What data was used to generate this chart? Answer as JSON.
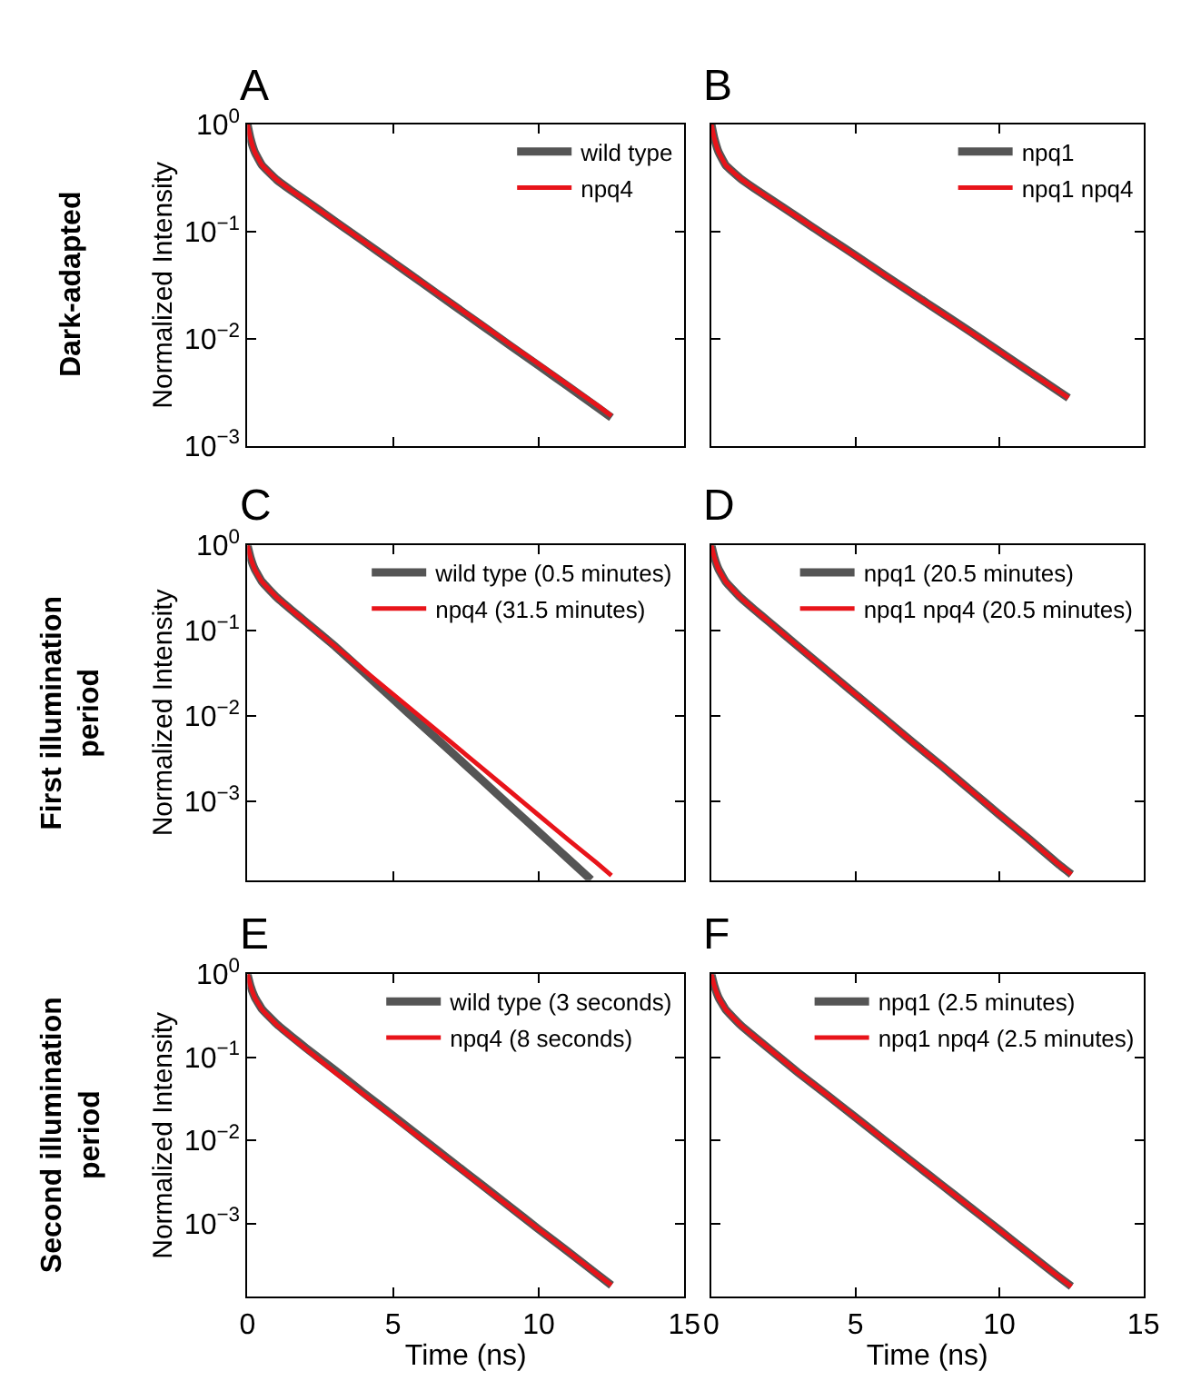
{
  "chart_data": [
    {
      "type": "line",
      "title": "A",
      "ylabel": "Normalized Intensity",
      "annotations": [
        "Dark-adapted"
      ],
      "log": "y",
      "xlim": [
        0,
        15
      ],
      "xticks": [
        0,
        5,
        10,
        15
      ],
      "ylim": [
        0.001,
        1
      ],
      "yticks": [
        {
          "value": 1,
          "label": "10$^{0}$"
        },
        {
          "value": 0.1,
          "label": "10$^{−1}$"
        },
        {
          "value": 0.01,
          "label": "10$^{−2}$"
        },
        {
          "value": 0.001,
          "label": "10$^{−3}$"
        }
      ],
      "tick_labels": "y",
      "legend": "top right",
      "line_style": "solid",
      "x": [
        0,
        0.1,
        0.25,
        0.5,
        1,
        1.5,
        2,
        3,
        4,
        5,
        6,
        7,
        8,
        9,
        10,
        11,
        12,
        12.5
      ],
      "series": [
        {
          "name": "wild type",
          "color": "#555555",
          "values": [
            1,
            0.745,
            0.553,
            0.416,
            0.305,
            0.242,
            0.195,
            0.125,
            0.0805,
            0.0517,
            0.0331,
            0.0212,
            0.0136,
            0.0087,
            0.0056,
            0.0036,
            0.0023,
            0.00183
          ]
        },
        {
          "name": "npq4",
          "color": "#e8141a",
          "values": [
            1,
            0.745,
            0.553,
            0.416,
            0.305,
            0.242,
            0.195,
            0.125,
            0.0805,
            0.0519,
            0.0334,
            0.0215,
            0.0139,
            0.0089,
            0.0058,
            0.0037,
            0.0024,
            0.0019
          ]
        }
      ]
    },
    {
      "type": "line",
      "title": "B",
      "log": "y",
      "xlim": [
        0,
        15
      ],
      "xticks": [
        0,
        5,
        10,
        15
      ],
      "ylim": [
        0.001,
        1
      ],
      "yticks": [
        {
          "value": 1,
          "label": null
        },
        {
          "value": 0.1,
          "label": null
        },
        {
          "value": 0.01,
          "label": null
        },
        {
          "value": 0.001,
          "label": null
        }
      ],
      "tick_labels": false,
      "legend": "top right",
      "line_style": "solid",
      "x": [
        0,
        0.1,
        0.25,
        0.5,
        1,
        1.5,
        2,
        3,
        4,
        5,
        6,
        7,
        8,
        9,
        10,
        11,
        12,
        12.4
      ],
      "series": [
        {
          "name": "npq1",
          "color": "#555555",
          "values": [
            1,
            0.745,
            0.553,
            0.416,
            0.314,
            0.252,
            0.205,
            0.136,
            0.09,
            0.06,
            0.0395,
            0.0262,
            0.0174,
            0.0116,
            0.0076,
            0.005,
            0.0033,
            0.0028
          ]
        },
        {
          "name": "npq1 npq4",
          "color": "#e8141a",
          "values": [
            1,
            0.745,
            0.553,
            0.416,
            0.314,
            0.252,
            0.205,
            0.136,
            0.0899,
            0.0596,
            0.0394,
            0.0261,
            0.0173,
            0.0115,
            0.0076,
            0.005,
            0.0033,
            0.0028
          ]
        }
      ]
    },
    {
      "type": "line",
      "title": "C",
      "ylabel": "Normalized Intensity",
      "annotations": [
        "First illumination\nperiod"
      ],
      "log": "y",
      "xlim": [
        0,
        15
      ],
      "xticks": [
        0,
        5,
        10,
        15
      ],
      "ylim": [
        0.00012,
        1
      ],
      "yticks": [
        {
          "value": 1,
          "label": "10$^{0}$"
        },
        {
          "value": 0.1,
          "label": "10$^{−1}$"
        },
        {
          "value": 0.01,
          "label": "10$^{−2}$"
        },
        {
          "value": 0.001,
          "label": "10$^{−3}$"
        }
      ],
      "tick_labels": "y",
      "legend": "top right",
      "line_style": "solid",
      "series": [
        {
          "name": "wild type (0.5 minutes)",
          "color": "#555555",
          "x": [
            0,
            0.1,
            0.25,
            0.5,
            1,
            1.5,
            2,
            3,
            4,
            5,
            6,
            7,
            8,
            9,
            10,
            11,
            11.8
          ],
          "values": [
            1,
            0.73,
            0.525,
            0.374,
            0.247,
            0.176,
            0.127,
            0.066,
            0.0324,
            0.0158,
            0.0077,
            0.0038,
            0.00185,
            0.0009,
            0.00044,
            0.000215,
            0.000121
          ]
        },
        {
          "name": "npq4 (31.5 minutes)",
          "color": "#e8141a",
          "x": [
            0,
            0.1,
            0.25,
            0.5,
            1,
            1.5,
            2,
            3,
            4,
            5,
            6,
            7,
            8,
            9,
            10,
            11,
            12,
            12.5
          ],
          "values": [
            1,
            0.73,
            0.525,
            0.374,
            0.247,
            0.176,
            0.127,
            0.066,
            0.0345,
            0.018,
            0.0094,
            0.0049,
            0.00255,
            0.00133,
            0.00069,
            0.00036,
            0.00019,
            0.000136
          ]
        }
      ]
    },
    {
      "type": "line",
      "title": "D",
      "log": "y",
      "xlim": [
        0,
        15
      ],
      "xticks": [
        0,
        5,
        10,
        15
      ],
      "ylim": [
        0.00012,
        1
      ],
      "yticks": [
        {
          "value": 1,
          "label": null
        },
        {
          "value": 0.1,
          "label": null
        },
        {
          "value": 0.01,
          "label": null
        },
        {
          "value": 0.001,
          "label": null
        }
      ],
      "tick_labels": false,
      "legend": "top right",
      "line_style": "solid",
      "x": [
        0,
        0.1,
        0.25,
        0.5,
        1,
        1.5,
        2,
        3,
        4,
        5,
        6,
        7,
        8,
        9,
        10,
        11,
        12,
        12.5
      ],
      "series": [
        {
          "name": "npq1 (20.5 minutes)",
          "color": "#555555",
          "values": [
            1,
            0.73,
            0.525,
            0.374,
            0.247,
            0.176,
            0.127,
            0.066,
            0.0345,
            0.018,
            0.0094,
            0.0049,
            0.0026,
            0.00135,
            0.0007,
            0.00037,
            0.00019,
            0.00014
          ]
        },
        {
          "name": "npq1 npq4 (20.5 minutes)",
          "color": "#e8141a",
          "values": [
            1,
            0.73,
            0.525,
            0.374,
            0.247,
            0.176,
            0.127,
            0.066,
            0.0345,
            0.018,
            0.0094,
            0.0049,
            0.0026,
            0.00135,
            0.0007,
            0.00037,
            0.00019,
            0.00014
          ]
        }
      ]
    },
    {
      "type": "line",
      "title": "E",
      "xlabel": "Time (ns)",
      "ylabel": "Normalized Intensity",
      "annotations": [
        "Second illumination\nperiod"
      ],
      "log": "y",
      "xlim": [
        0,
        15
      ],
      "xticks": [
        0,
        5,
        10,
        15
      ],
      "ylim": [
        0.00013,
        1
      ],
      "yticks": [
        {
          "value": 1,
          "label": "10$^{0}$"
        },
        {
          "value": 0.1,
          "label": "10$^{−1}$"
        },
        {
          "value": 0.01,
          "label": "10$^{−2}$"
        },
        {
          "value": 0.001,
          "label": "10$^{−3}$"
        }
      ],
      "legend": "top right",
      "line_style": "solid",
      "x": [
        0,
        0.1,
        0.25,
        0.5,
        1,
        1.5,
        2,
        3,
        4,
        5,
        6,
        7,
        8,
        9,
        10,
        11,
        12,
        12.5
      ],
      "series": [
        {
          "name": "wild type (3 seconds)",
          "color": "#555555",
          "values": [
            1,
            0.73,
            0.53,
            0.38,
            0.252,
            0.18,
            0.13,
            0.07,
            0.037,
            0.0198,
            0.0105,
            0.0056,
            0.003,
            0.0016,
            0.00085,
            0.00046,
            0.000245,
            0.00018
          ]
        },
        {
          "name": "npq4 (8 seconds)",
          "color": "#e8141a",
          "values": [
            1,
            0.73,
            0.525,
            0.374,
            0.247,
            0.176,
            0.127,
            0.066,
            0.0355,
            0.0191,
            0.0102,
            0.0055,
            0.00295,
            0.00158,
            0.00085,
            0.00046,
            0.000245,
            0.00018
          ]
        }
      ]
    },
    {
      "type": "line",
      "title": "F",
      "xlabel": "Time (ns)",
      "log": "y",
      "xlim": [
        0,
        15
      ],
      "xticks": [
        0,
        5,
        10,
        15
      ],
      "ylim": [
        0.00013,
        1
      ],
      "yticks": [
        {
          "value": 1,
          "label": null
        },
        {
          "value": 0.1,
          "label": null
        },
        {
          "value": 0.01,
          "label": null
        },
        {
          "value": 0.001,
          "label": null
        }
      ],
      "tick_labels": "x",
      "legend": "top right",
      "line_style": "solid",
      "x": [
        0,
        0.1,
        0.25,
        0.5,
        1,
        1.5,
        2,
        3,
        4,
        5,
        6,
        7,
        8,
        9,
        10,
        11,
        12,
        12.5
      ],
      "series": [
        {
          "name": "npq1 (2.5 minutes)",
          "color": "#555555",
          "values": [
            1,
            0.73,
            0.525,
            0.374,
            0.247,
            0.176,
            0.127,
            0.066,
            0.0355,
            0.019,
            0.0101,
            0.0054,
            0.0029,
            0.00155,
            0.00083,
            0.00044,
            0.000235,
            0.000174
          ]
        },
        {
          "name": "npq1 npq4 (2.5 minutes)",
          "color": "#e8141a",
          "values": [
            1,
            0.73,
            0.525,
            0.374,
            0.247,
            0.176,
            0.127,
            0.066,
            0.0355,
            0.019,
            0.0101,
            0.0054,
            0.0029,
            0.00155,
            0.00083,
            0.00044,
            0.000235,
            0.000174
          ]
        }
      ]
    }
  ]
}
